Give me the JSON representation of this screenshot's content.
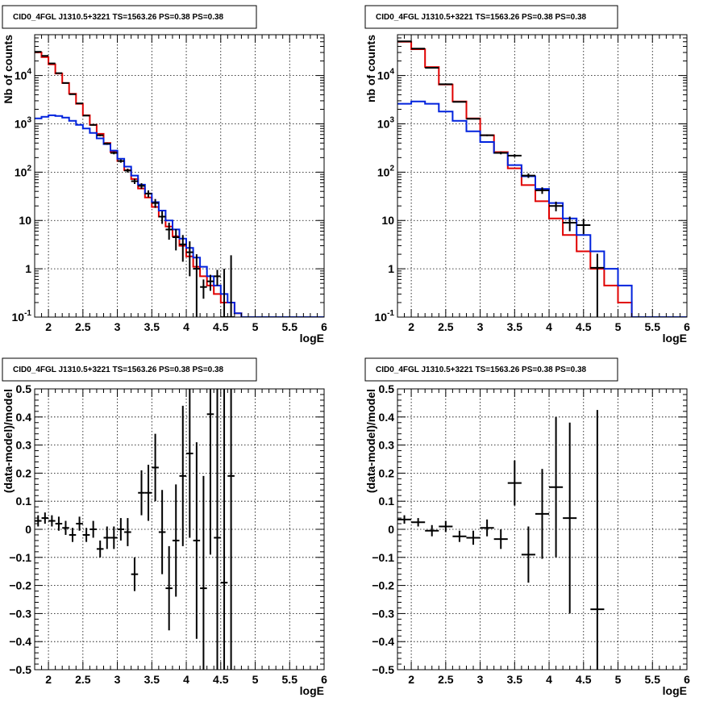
{
  "colors": {
    "data": "#000000",
    "total_model": "#e00000",
    "source_model": "#0022dd",
    "grid": "#000000",
    "frame": "#000000"
  },
  "chart_data": [
    {
      "type": "line",
      "title": "CID0_4FGL J1310.5+3221 TS=1563.26 PS=0.38 PS=0.38",
      "xlabel": "logE",
      "ylabel": "Nb of counts",
      "xlim": [
        1.8,
        6.0
      ],
      "ylim": [
        0.1,
        70000
      ],
      "yscale": "log",
      "grid": true,
      "xticks": [
        "2",
        "2.5",
        "3",
        "3.5",
        "4",
        "4.5",
        "5",
        "5.5",
        "6"
      ],
      "yticks": [
        "10^-1",
        "1",
        "10",
        "10^2",
        "10^3",
        "10^4"
      ],
      "bin_edges": [
        1.8,
        1.9,
        2.0,
        2.1,
        2.2,
        2.3,
        2.4,
        2.5,
        2.6,
        2.7,
        2.8,
        2.9,
        3.0,
        3.1,
        3.2,
        3.3,
        3.4,
        3.5,
        3.6,
        3.7,
        3.8,
        3.9,
        4.0,
        4.1,
        4.2,
        4.3,
        4.4,
        4.5,
        4.6,
        4.7,
        4.8,
        4.9,
        5.0,
        5.1,
        5.2,
        5.3,
        5.4,
        5.5,
        5.6,
        5.7,
        5.8,
        5.9,
        6.0
      ],
      "series": [
        {
          "style": "step",
          "color_key": "total_model",
          "values": [
            30000,
            24000,
            17000,
            11000,
            7000,
            4200,
            2600,
            1500,
            950,
            620,
            400,
            260,
            170,
            110,
            72,
            46,
            30,
            19,
            12,
            7.5,
            4.7,
            3.0,
            1.8,
            1.1,
            0.7,
            0.45,
            0.3,
            0.2,
            0.2,
            0.12,
            0.1,
            0.1,
            0.1,
            0.1,
            0.1,
            0.1,
            0.1,
            0.1,
            0.1,
            0.1,
            0.1,
            0.1
          ]
        },
        {
          "style": "step",
          "color_key": "source_model",
          "values": [
            1300,
            1400,
            1500,
            1450,
            1350,
            1150,
            950,
            800,
            650,
            500,
            380,
            280,
            190,
            130,
            85,
            55,
            36,
            24,
            16,
            10,
            6.5,
            4.2,
            2.7,
            1.7,
            1.1,
            0.7,
            0.45,
            0.3,
            0.2,
            0.12,
            0.1,
            0.1,
            0.1,
            0.1,
            0.1,
            0.1,
            0.1,
            0.1,
            0.1,
            0.1,
            0.1,
            0.1
          ]
        },
        {
          "style": "errorbar",
          "color_key": "data",
          "x": [
            1.85,
            1.95,
            2.05,
            2.15,
            2.25,
            2.35,
            2.45,
            2.55,
            2.65,
            2.75,
            2.85,
            2.95,
            3.05,
            3.15,
            3.25,
            3.35,
            3.45,
            3.55,
            3.65,
            3.75,
            3.85,
            3.95,
            4.05,
            4.15,
            4.25,
            4.35,
            4.45,
            4.55,
            4.65
          ],
          "y": [
            31000,
            25500,
            17800,
            11200,
            7000,
            4100,
            2650,
            1480,
            950,
            580,
            390,
            250,
            170,
            108,
            65,
            52,
            36,
            23,
            12,
            6.5,
            4.5,
            3.2,
            2.2,
            1.0,
            0.42,
            0.55,
            0.7,
            0.1,
            0.1
          ],
          "yerr_low": [
            180,
            160,
            130,
            106,
            84,
            64,
            51,
            38,
            31,
            24,
            20,
            16,
            13,
            10,
            8,
            7,
            6,
            4.8,
            3.5,
            2.5,
            2.1,
            1.8,
            1.5,
            1.0,
            0.18,
            0.2,
            0.25,
            0.1,
            0.1
          ],
          "yerr_high": [
            180,
            160,
            130,
            106,
            84,
            64,
            51,
            38,
            31,
            24,
            20,
            16,
            13,
            10,
            8,
            7,
            6,
            4.8,
            3.5,
            2.5,
            2.1,
            1.8,
            1.5,
            1.0,
            0.18,
            0.2,
            0.25,
            0.9,
            1.8
          ]
        }
      ]
    },
    {
      "type": "line",
      "title": "CID0_4FGL J1310.5+3221 TS=1563.26 PS=0.38 PS=0.38",
      "xlabel": "logE",
      "ylabel": "nb of counts",
      "xlim": [
        1.8,
        6.0
      ],
      "ylim": [
        0.1,
        70000
      ],
      "yscale": "log",
      "grid": true,
      "xticks": [
        "2",
        "2.5",
        "3",
        "3.5",
        "4",
        "4.5",
        "5",
        "5.5",
        "6"
      ],
      "yticks": [
        "10^-1",
        "1",
        "10",
        "10^2",
        "10^3",
        "10^4"
      ],
      "bin_edges": [
        1.8,
        2.0,
        2.2,
        2.4,
        2.6,
        2.8,
        3.0,
        3.2,
        3.4,
        3.6,
        3.8,
        4.0,
        4.2,
        4.4,
        4.6,
        4.8,
        5.0,
        5.2,
        5.4,
        5.6,
        5.8,
        6.0
      ],
      "series": [
        {
          "style": "step",
          "color_key": "total_model",
          "values": [
            50000,
            35000,
            15000,
            6500,
            2900,
            1300,
            580,
            260,
            120,
            54,
            25,
            11,
            5,
            2.3,
            1.0,
            0.45,
            0.2,
            0.1,
            0.1,
            0.1,
            0.1
          ]
        },
        {
          "style": "step",
          "color_key": "source_model",
          "values": [
            2600,
            2900,
            2600,
            1800,
            1150,
            700,
            420,
            250,
            140,
            82,
            45,
            23,
            11,
            5,
            2.3,
            1.0,
            0.45,
            0.1,
            0.1,
            0.1,
            0.1
          ]
        },
        {
          "style": "errorbar",
          "color_key": "data",
          "x": [
            1.9,
            2.1,
            2.3,
            2.5,
            2.7,
            2.9,
            3.1,
            3.3,
            3.5,
            3.7,
            3.9,
            4.1,
            4.3,
            4.5,
            4.7
          ],
          "y": [
            51000,
            36000,
            14500,
            6600,
            2850,
            1270,
            580,
            250,
            220,
            85,
            42,
            20,
            9,
            8,
            1.05
          ],
          "yerr_low": [
            230,
            190,
            120,
            81,
            53,
            36,
            24,
            16,
            15,
            9,
            6.5,
            4.5,
            3,
            2.8,
            1.0
          ],
          "yerr_high": [
            230,
            190,
            120,
            81,
            53,
            36,
            24,
            16,
            15,
            9,
            6.5,
            4.5,
            3,
            2.8,
            1.0
          ]
        }
      ]
    },
    {
      "type": "scatter",
      "title": "CID0_4FGL J1310.5+3221 TS=1563.26 PS=0.38 PS=0.38",
      "xlabel": "logE",
      "ylabel": "(data-model)/model",
      "xlim": [
        1.8,
        6.0
      ],
      "ylim": [
        -0.5,
        0.5
      ],
      "yscale": "linear",
      "grid": true,
      "xticks": [
        "2",
        "2.5",
        "3",
        "3.5",
        "4",
        "4.5",
        "5",
        "5.5",
        "6"
      ],
      "yticks": [
        "-0.5",
        "-0.4",
        "-0.3",
        "-0.2",
        "-0.1",
        "0",
        "0.1",
        "0.2",
        "0.3",
        "0.4",
        "0.5"
      ],
      "series": [
        {
          "style": "errorbar",
          "color_key": "data",
          "x": [
            1.85,
            1.95,
            2.05,
            2.15,
            2.25,
            2.35,
            2.45,
            2.55,
            2.65,
            2.75,
            2.85,
            2.95,
            3.05,
            3.15,
            3.25,
            3.35,
            3.45,
            3.55,
            3.65,
            3.75,
            3.85,
            3.95,
            4.05,
            4.15,
            4.25,
            4.35,
            4.45,
            4.55,
            4.65
          ],
          "y": [
            0.03,
            0.04,
            0.03,
            0.02,
            0.005,
            -0.02,
            0.02,
            -0.02,
            0.0,
            -0.07,
            -0.03,
            -0.03,
            0.0,
            -0.01,
            -0.16,
            0.13,
            0.13,
            0.22,
            -0.01,
            -0.21,
            -0.04,
            0.19,
            0.27,
            -0.04,
            -0.21,
            0.41,
            -0.03,
            -0.19,
            0.19
          ],
          "yerr": [
            0.02,
            0.02,
            0.02,
            0.025,
            0.025,
            0.025,
            0.025,
            0.025,
            0.03,
            0.03,
            0.04,
            0.04,
            0.04,
            0.05,
            0.06,
            0.08,
            0.1,
            0.12,
            0.15,
            0.15,
            0.2,
            0.25,
            0.3,
            0.35,
            0.4,
            0.5,
            0.6,
            0.7,
            0.8
          ],
          "xerr": [
            0.05,
            0.05,
            0.05,
            0.05,
            0.05,
            0.05,
            0.05,
            0.05,
            0.05,
            0.05,
            0.05,
            0.05,
            0.05,
            0.05,
            0.05,
            0.05,
            0.05,
            0.05,
            0.05,
            0.05,
            0.05,
            0.05,
            0.05,
            0.05,
            0.05,
            0.05,
            0.05,
            0.05,
            0.05
          ]
        }
      ]
    },
    {
      "type": "scatter",
      "title": "CID0_4FGL J1310.5+3221 TS=1563.26 PS=0.38 PS=0.38",
      "xlabel": "logE",
      "ylabel": "(data-model)/model",
      "xlim": [
        1.8,
        6.0
      ],
      "ylim": [
        -0.5,
        0.5
      ],
      "yscale": "linear",
      "grid": true,
      "xticks": [
        "2",
        "2.5",
        "3",
        "3.5",
        "4",
        "4.5",
        "5",
        "5.5",
        "6"
      ],
      "yticks": [
        "-0.5",
        "-0.4",
        "-0.3",
        "-0.2",
        "-0.1",
        "0",
        "0.1",
        "0.2",
        "0.3",
        "0.4",
        "0.5"
      ],
      "series": [
        {
          "style": "errorbar",
          "color_key": "data",
          "x": [
            1.9,
            2.1,
            2.3,
            2.5,
            2.7,
            2.9,
            3.1,
            3.3,
            3.5,
            3.7,
            3.9,
            4.1,
            4.3,
            4.7
          ],
          "y": [
            0.035,
            0.025,
            -0.005,
            0.01,
            -0.025,
            -0.03,
            0.005,
            -0.035,
            0.165,
            -0.09,
            0.055,
            0.15,
            0.04,
            -0.285
          ],
          "yerr": [
            0.015,
            0.015,
            0.02,
            0.02,
            0.02,
            0.025,
            0.03,
            0.035,
            0.08,
            0.1,
            0.16,
            0.25,
            0.34,
            0.71
          ],
          "xerr": [
            0.1,
            0.1,
            0.1,
            0.1,
            0.1,
            0.1,
            0.1,
            0.1,
            0.1,
            0.1,
            0.1,
            0.1,
            0.1,
            0.1
          ]
        }
      ]
    }
  ]
}
